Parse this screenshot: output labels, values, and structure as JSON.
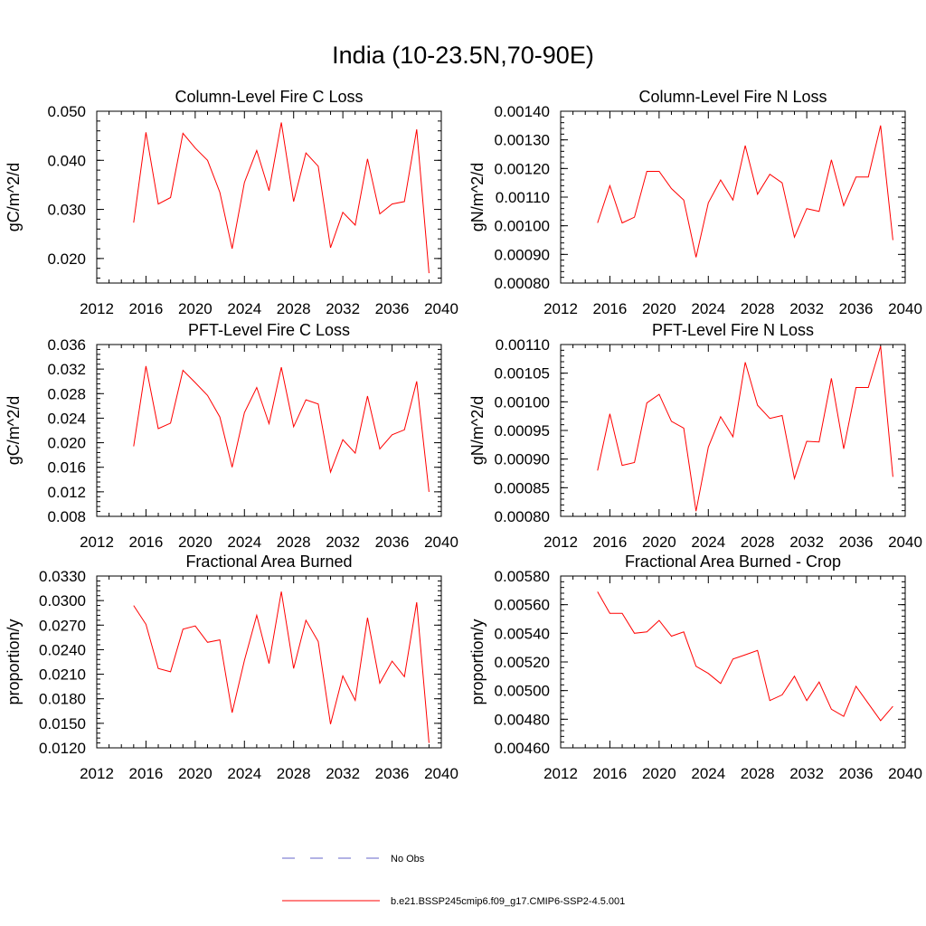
{
  "title": "India (10-23.5N,70-90E)",
  "colors": {
    "model": "#ff0000",
    "obs": "#6464c8",
    "axis": "#000000"
  },
  "legend": {
    "obs_label": "No Obs",
    "model_label": "b.e21.BSSP245cmip6.f09_g17.CMIP6-SSP2-4.5.001"
  },
  "chart_data": [
    {
      "type": "line",
      "title": "Column-Level Fire C Loss",
      "ylabel": "gC/m^2/d",
      "xlim": [
        2012,
        2040
      ],
      "xticks": [
        "2012",
        "2016",
        "2020",
        "2024",
        "2028",
        "2032",
        "2036",
        "2040"
      ],
      "ylim": [
        0.015,
        0.05
      ],
      "yticks": [
        "0.020",
        "0.030",
        "0.040",
        "0.050"
      ],
      "x": [
        2015,
        2016,
        2017,
        2018,
        2019,
        2020,
        2021,
        2022,
        2023,
        2024,
        2025,
        2026,
        2027,
        2028,
        2029,
        2030,
        2031,
        2032,
        2033,
        2034,
        2035,
        2036,
        2037,
        2038,
        2039
      ],
      "series": [
        {
          "values": [
            0.0273,
            0.0457,
            0.0311,
            0.0324,
            0.0455,
            0.0425,
            0.04,
            0.0335,
            0.022,
            0.0355,
            0.042,
            0.0338,
            0.0477,
            0.0316,
            0.0415,
            0.0388,
            0.0222,
            0.0294,
            0.0268,
            0.0403,
            0.0291,
            0.0311,
            0.0316,
            0.0463,
            0.017
          ]
        }
      ]
    },
    {
      "type": "line",
      "title": "Column-Level Fire N Loss",
      "ylabel": "gN/m^2/d",
      "xlim": [
        2012,
        2040
      ],
      "xticks": [
        "2012",
        "2016",
        "2020",
        "2024",
        "2028",
        "2032",
        "2036",
        "2040"
      ],
      "ylim": [
        0.0008,
        0.0014
      ],
      "yticks": [
        "0.00080",
        "0.00090",
        "0.00100",
        "0.00110",
        "0.00120",
        "0.00130",
        "0.00140"
      ],
      "x": [
        2015,
        2016,
        2017,
        2018,
        2019,
        2020,
        2021,
        2022,
        2023,
        2024,
        2025,
        2026,
        2027,
        2028,
        2029,
        2030,
        2031,
        2032,
        2033,
        2034,
        2035,
        2036,
        2037,
        2038,
        2039
      ],
      "series": [
        {
          "values": [
            0.00101,
            0.00114,
            0.00101,
            0.00103,
            0.00119,
            0.00119,
            0.00113,
            0.00109,
            0.00089,
            0.00108,
            0.00116,
            0.00109,
            0.00128,
            0.00111,
            0.00118,
            0.00115,
            0.00096,
            0.00106,
            0.00105,
            0.00123,
            0.00107,
            0.00117,
            0.00117,
            0.00135,
            0.00095
          ]
        }
      ]
    },
    {
      "type": "line",
      "title": "PFT-Level Fire C Loss",
      "ylabel": "gC/m^2/d",
      "xlim": [
        2012,
        2040
      ],
      "xticks": [
        "2012",
        "2016",
        "2020",
        "2024",
        "2028",
        "2032",
        "2036",
        "2040"
      ],
      "ylim": [
        0.008,
        0.036
      ],
      "yticks": [
        "0.008",
        "0.012",
        "0.016",
        "0.020",
        "0.024",
        "0.028",
        "0.032",
        "0.036"
      ],
      "x": [
        2015,
        2016,
        2017,
        2018,
        2019,
        2020,
        2021,
        2022,
        2023,
        2024,
        2025,
        2026,
        2027,
        2028,
        2029,
        2030,
        2031,
        2032,
        2033,
        2034,
        2035,
        2036,
        2037,
        2038,
        2039
      ],
      "series": [
        {
          "values": [
            0.0194,
            0.0325,
            0.0223,
            0.0232,
            0.0318,
            0.0298,
            0.0277,
            0.0242,
            0.016,
            0.0249,
            0.029,
            0.0231,
            0.0323,
            0.0226,
            0.027,
            0.0263,
            0.0152,
            0.0205,
            0.0183,
            0.0276,
            0.019,
            0.0213,
            0.0221,
            0.03,
            0.012
          ]
        }
      ]
    },
    {
      "type": "line",
      "title": "PFT-Level Fire N Loss",
      "ylabel": "gN/m^2/d",
      "xlim": [
        2012,
        2040
      ],
      "xticks": [
        "2012",
        "2016",
        "2020",
        "2024",
        "2028",
        "2032",
        "2036",
        "2040"
      ],
      "ylim": [
        0.0008,
        0.0011
      ],
      "yticks": [
        "0.00080",
        "0.00085",
        "0.00090",
        "0.00095",
        "0.00100",
        "0.00105",
        "0.00110"
      ],
      "x": [
        2015,
        2016,
        2017,
        2018,
        2019,
        2020,
        2021,
        2022,
        2023,
        2024,
        2025,
        2026,
        2027,
        2028,
        2029,
        2030,
        2031,
        2032,
        2033,
        2034,
        2035,
        2036,
        2037,
        2038,
        2039
      ],
      "series": [
        {
          "values": [
            0.00088,
            0.000979,
            0.000889,
            0.000894,
            0.000998,
            0.001013,
            0.000966,
            0.000954,
            0.000809,
            0.000921,
            0.000974,
            0.000939,
            0.001069,
            0.000994,
            0.000971,
            0.000976,
            0.000866,
            0.000931,
            0.00093,
            0.001041,
            0.000918,
            0.001025,
            0.001025,
            0.001097,
            0.000869
          ]
        }
      ]
    },
    {
      "type": "line",
      "title": "Fractional Area Burned",
      "ylabel": "proportion/y",
      "xlim": [
        2012,
        2040
      ],
      "xticks": [
        "2012",
        "2016",
        "2020",
        "2024",
        "2028",
        "2032",
        "2036",
        "2040"
      ],
      "ylim": [
        0.012,
        0.033
      ],
      "yticks": [
        "0.0120",
        "0.0150",
        "0.0180",
        "0.0210",
        "0.0240",
        "0.0270",
        "0.0300",
        "0.0330"
      ],
      "x": [
        2015,
        2016,
        2017,
        2018,
        2019,
        2020,
        2021,
        2022,
        2023,
        2024,
        2025,
        2026,
        2027,
        2028,
        2029,
        2030,
        2031,
        2032,
        2033,
        2034,
        2035,
        2036,
        2037,
        2038,
        2039
      ],
      "series": [
        {
          "values": [
            0.0294,
            0.0271,
            0.0217,
            0.0213,
            0.0265,
            0.0269,
            0.0249,
            0.0252,
            0.0163,
            0.0227,
            0.0282,
            0.0223,
            0.0311,
            0.0217,
            0.0276,
            0.025,
            0.0149,
            0.0208,
            0.0178,
            0.0279,
            0.0199,
            0.0226,
            0.0207,
            0.0298,
            0.0126
          ]
        }
      ]
    },
    {
      "type": "line",
      "title": "Fractional Area Burned - Crop",
      "ylabel": "proportion/y",
      "xlim": [
        2012,
        2040
      ],
      "xticks": [
        "2012",
        "2016",
        "2020",
        "2024",
        "2028",
        "2032",
        "2036",
        "2040"
      ],
      "ylim": [
        0.0046,
        0.0058
      ],
      "yticks": [
        "0.00460",
        "0.00480",
        "0.00500",
        "0.00520",
        "0.00540",
        "0.00560",
        "0.00580"
      ],
      "x": [
        2015,
        2016,
        2017,
        2018,
        2019,
        2020,
        2021,
        2022,
        2023,
        2024,
        2025,
        2026,
        2027,
        2028,
        2029,
        2030,
        2031,
        2032,
        2033,
        2034,
        2035,
        2036,
        2037,
        2038,
        2039
      ],
      "series": [
        {
          "values": [
            0.00569,
            0.00554,
            0.00554,
            0.0054,
            0.00541,
            0.00549,
            0.00538,
            0.00541,
            0.00517,
            0.00512,
            0.00505,
            0.00522,
            0.00525,
            0.00528,
            0.00493,
            0.00497,
            0.0051,
            0.00493,
            0.00506,
            0.00487,
            0.00482,
            0.00503,
            0.00491,
            0.00479,
            0.00489
          ]
        }
      ]
    }
  ]
}
